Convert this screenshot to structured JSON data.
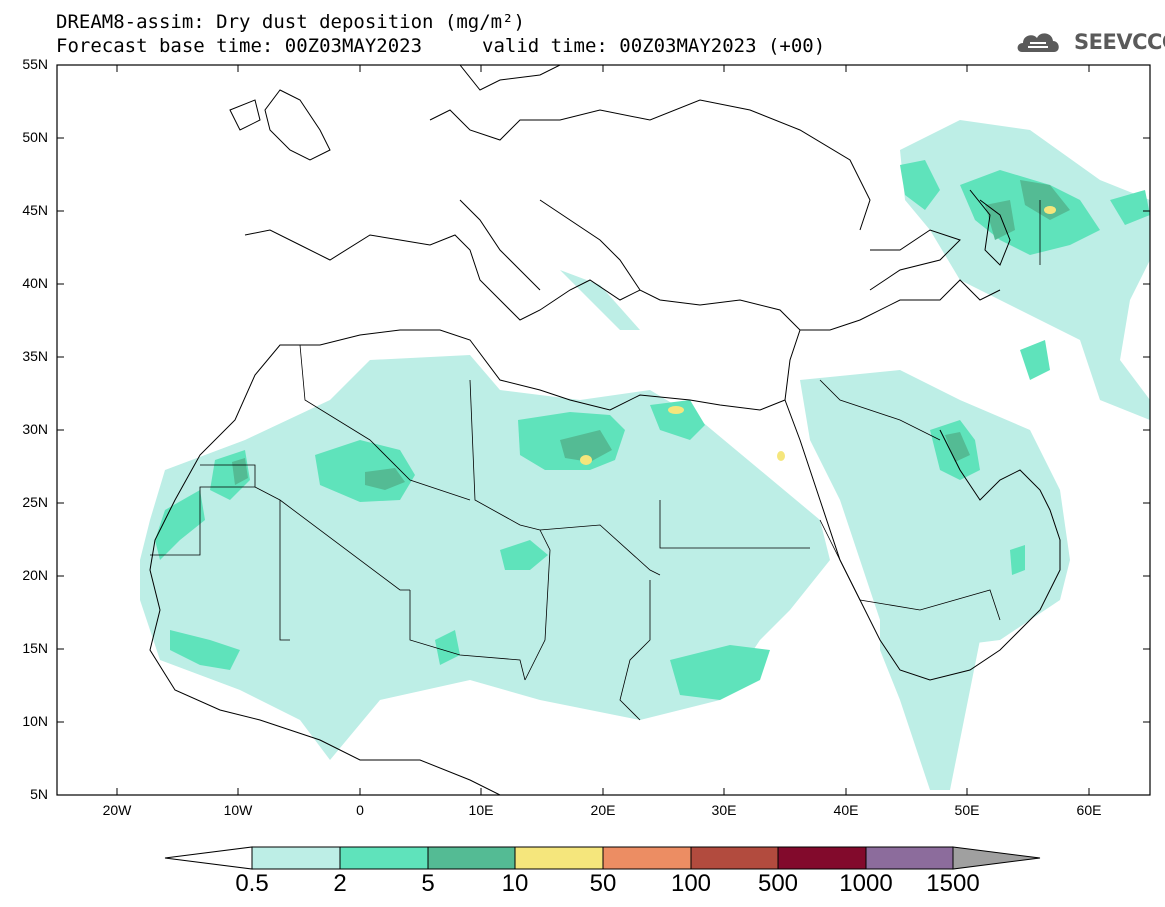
{
  "header": {
    "line1": "DREAM8-assim: Dry dust deposition (mg/m²)",
    "line2": "Forecast base time: 00Z03MAY2023",
    "valid": "valid time: 00Z03MAY2023 (+00)",
    "logo_text": "SEEVCCC"
  },
  "axes": {
    "lat_labels": [
      "55N",
      "50N",
      "45N",
      "40N",
      "35N",
      "30N",
      "25N",
      "20N",
      "15N",
      "10N",
      "5N"
    ],
    "lon_labels": [
      "20W",
      "10W",
      "0",
      "10E",
      "20E",
      "30E",
      "40E",
      "50E",
      "60E"
    ]
  },
  "colorbar": {
    "labels": [
      "0.5",
      "2",
      "5",
      "10",
      "50",
      "100",
      "500",
      "1000",
      "1500"
    ],
    "colors": [
      "#ffffff",
      "#bdeee6",
      "#5fe3bb",
      "#54bb94",
      "#f5e67c",
      "#ec8d63",
      "#b24b3e",
      "#820a2c",
      "#8c6c9c",
      "#a0a0a0"
    ]
  },
  "icons": {
    "logo": "cloud-icon"
  }
}
